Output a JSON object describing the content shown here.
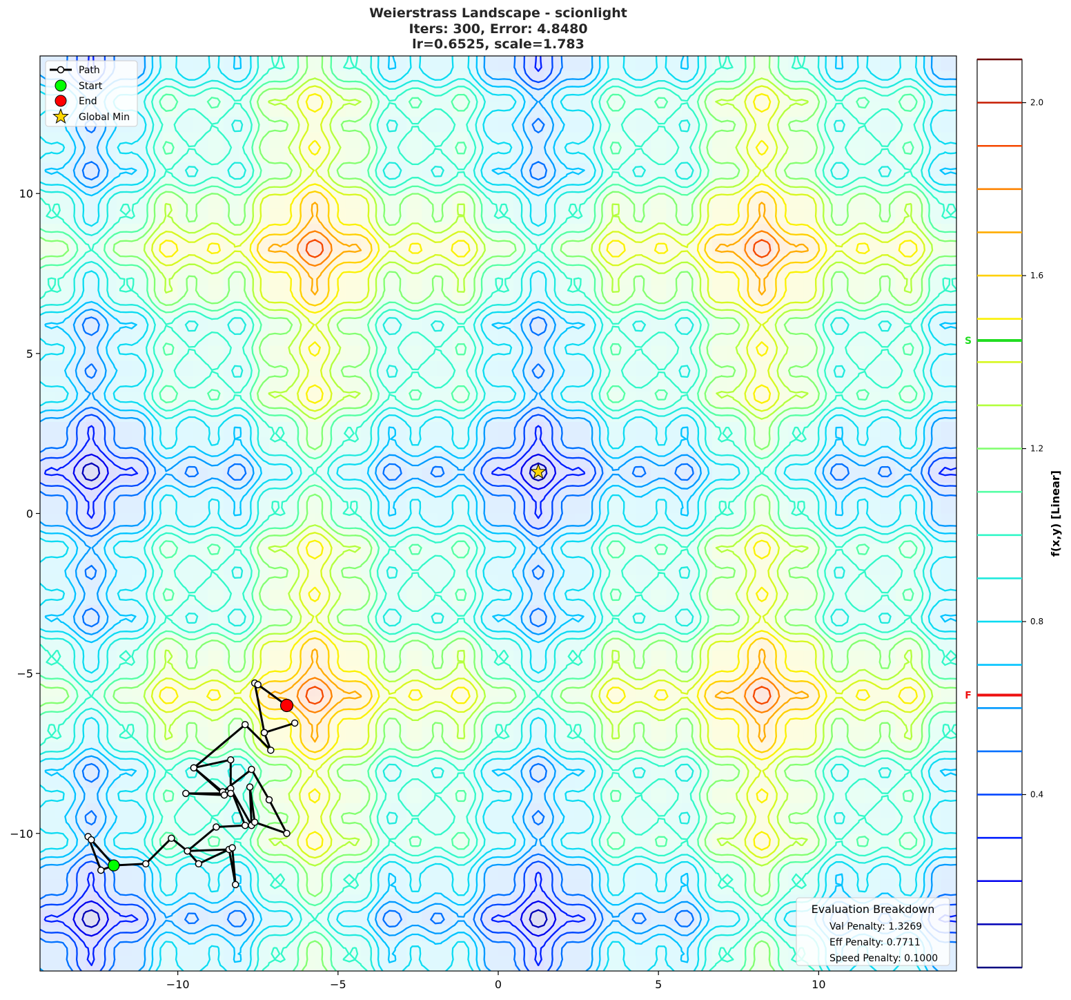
{
  "chart_data": {
    "type": "contour",
    "title_lines": [
      "Weierstrass Landscape - scionlight",
      "Iters: 300, Error: 4.8480",
      "lr=0.6525, scale=1.783"
    ],
    "xlim": [
      -14.3,
      14.3
    ],
    "ylim": [
      -14.3,
      14.3
    ],
    "x_ticks": [
      -10,
      -5,
      0,
      5,
      10
    ],
    "y_ticks": [
      -10,
      -5,
      0,
      5,
      10
    ],
    "x_tick_labels": [
      "−10",
      "−5",
      "0",
      "5",
      "10"
    ],
    "y_tick_labels": [
      "−10",
      "−5",
      "0",
      "5",
      "10"
    ],
    "legend": {
      "placement": "top-left",
      "entries": [
        {
          "label": "Path",
          "marker": "line-circle",
          "color": "#000000"
        },
        {
          "label": "Start",
          "marker": "circle",
          "color": "#00ff00"
        },
        {
          "label": "End",
          "marker": "circle",
          "color": "#ff0000"
        },
        {
          "label": "Global Min",
          "marker": "star",
          "color": "#ffd700"
        }
      ]
    },
    "global_min": {
      "x": 1.25,
      "y": 1.3
    },
    "start": {
      "x": -12.0,
      "y": -11.0
    },
    "end": {
      "x": -6.6,
      "y": -6.0
    },
    "path": [
      {
        "x": -12.0,
        "y": -11.0
      },
      {
        "x": -12.4,
        "y": -11.15
      },
      {
        "x": -12.8,
        "y": -10.1
      },
      {
        "x": -12.7,
        "y": -10.2
      },
      {
        "x": -12.0,
        "y": -11.0
      },
      {
        "x": -11.0,
        "y": -10.95
      },
      {
        "x": -10.2,
        "y": -10.15
      },
      {
        "x": -9.7,
        "y": -10.55
      },
      {
        "x": -8.4,
        "y": -10.5
      },
      {
        "x": -8.2,
        "y": -11.6
      },
      {
        "x": -8.3,
        "y": -10.45
      },
      {
        "x": -9.35,
        "y": -10.95
      },
      {
        "x": -9.7,
        "y": -10.55
      },
      {
        "x": -8.8,
        "y": -9.8
      },
      {
        "x": -7.9,
        "y": -9.75
      },
      {
        "x": -8.35,
        "y": -8.6
      },
      {
        "x": -7.7,
        "y": -9.75
      },
      {
        "x": -7.75,
        "y": -8.55
      },
      {
        "x": -7.6,
        "y": -9.65
      },
      {
        "x": -6.6,
        "y": -10.0
      },
      {
        "x": -7.15,
        "y": -8.95
      },
      {
        "x": -7.7,
        "y": -8.0
      },
      {
        "x": -8.6,
        "y": -8.7
      },
      {
        "x": -9.5,
        "y": -7.95
      },
      {
        "x": -8.55,
        "y": -8.8
      },
      {
        "x": -9.75,
        "y": -8.75
      },
      {
        "x": -8.35,
        "y": -8.75
      },
      {
        "x": -8.35,
        "y": -7.7
      },
      {
        "x": -9.5,
        "y": -7.95
      },
      {
        "x": -7.9,
        "y": -6.6
      },
      {
        "x": -7.1,
        "y": -7.4
      },
      {
        "x": -7.3,
        "y": -6.85
      },
      {
        "x": -6.35,
        "y": -6.55
      },
      {
        "x": -7.3,
        "y": -6.85
      },
      {
        "x": -7.6,
        "y": -5.3
      },
      {
        "x": -7.5,
        "y": -5.35
      },
      {
        "x": -6.6,
        "y": -6.0
      }
    ],
    "eval_box": {
      "placement": "bottom-right",
      "title": "Evaluation Breakdown",
      "lines": [
        "Val Penalty: 1.3269",
        "Eff Penalty: 0.7711",
        "Speed Penalty: 0.1000"
      ]
    },
    "colorbar": {
      "label": "f(x,y) [Linear]",
      "range": [
        0.0,
        2.1
      ],
      "ticks": [
        0.4,
        0.8,
        1.2,
        1.6,
        2.0
      ],
      "tick_labels": [
        "0.4",
        "0.8",
        "1.2",
        "1.6",
        "2.0"
      ],
      "levels": [
        0.1,
        0.2,
        0.3,
        0.4,
        0.5,
        0.6,
        0.7,
        0.8,
        0.9,
        1.0,
        1.1,
        1.2,
        1.3,
        1.4,
        1.5,
        1.6,
        1.7,
        1.8,
        1.9,
        2.0,
        2.1
      ],
      "markers": [
        {
          "label": "S",
          "value": 1.45,
          "color": "#22dd22"
        },
        {
          "label": "F",
          "value": 0.63,
          "color": "#ee1111"
        }
      ]
    }
  }
}
